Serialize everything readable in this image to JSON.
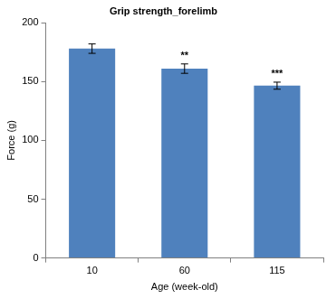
{
  "chart_data": {
    "type": "bar",
    "title": "Grip strength_forelimb",
    "x_label": "Age (week-old)",
    "y_label": "Force (g)",
    "categories": [
      "10",
      "60",
      "115"
    ],
    "values": [
      178,
      161,
      146.5
    ],
    "errors": [
      4,
      4,
      3
    ],
    "annotations": [
      {
        "category": "60",
        "text": "**"
      },
      {
        "category": "115",
        "text": "***"
      }
    ],
    "color": "#4f81bd",
    "ylim": [
      0,
      200
    ],
    "yticks": [
      0,
      50,
      100,
      150,
      200
    ],
    "grid": false
  }
}
